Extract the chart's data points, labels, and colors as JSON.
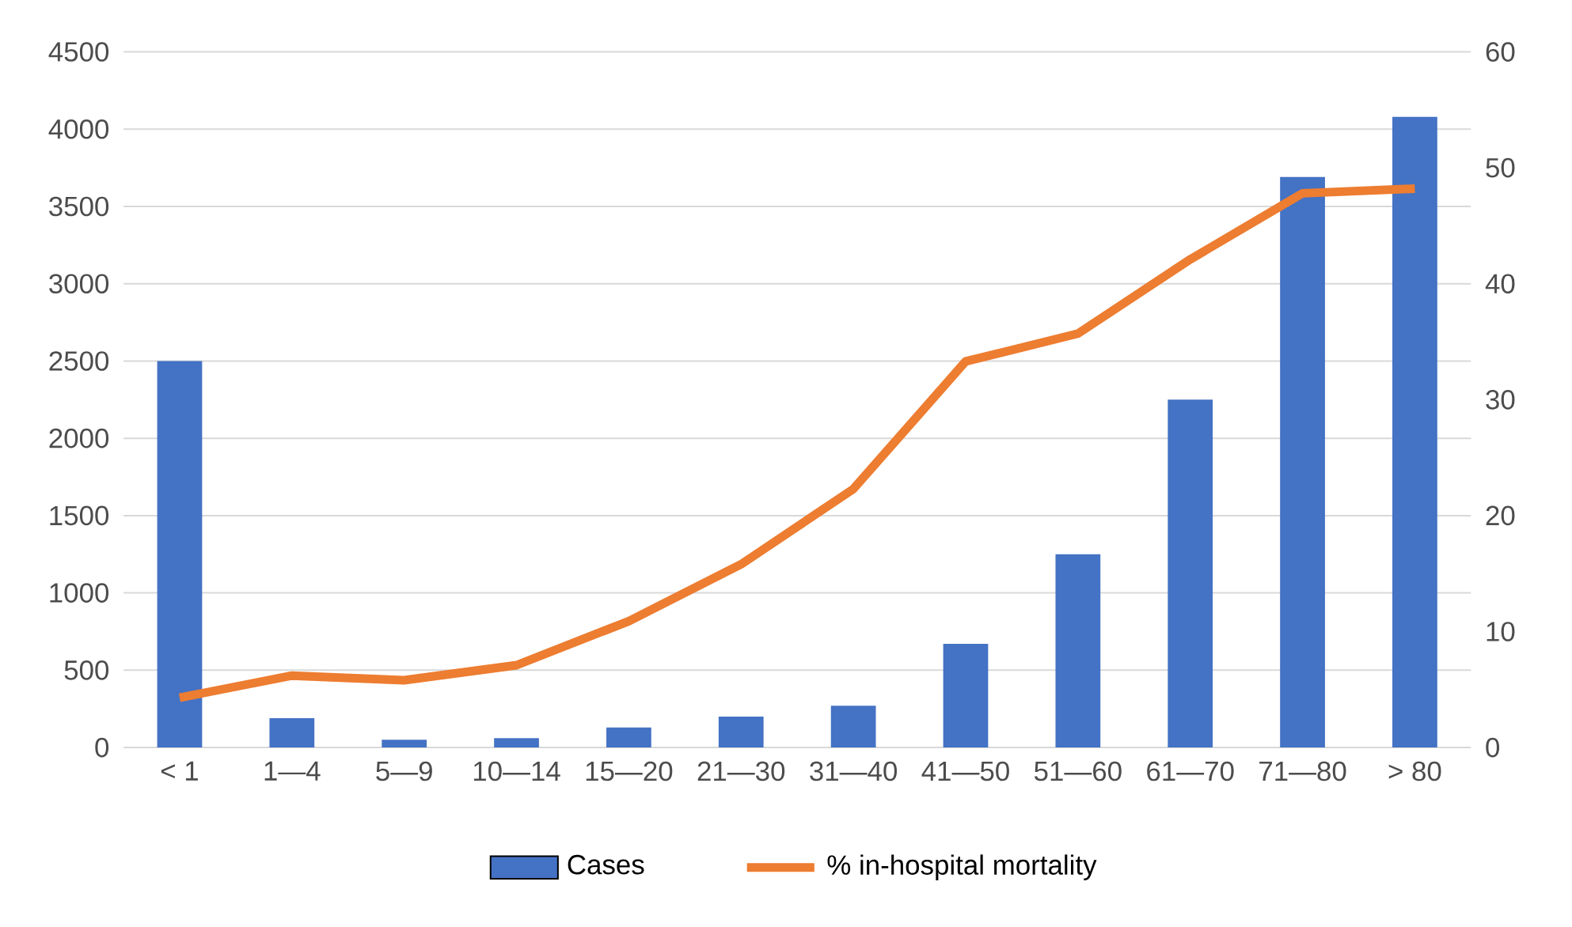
{
  "chart_data": {
    "type": "bar",
    "categories": [
      "< 1",
      "1—4",
      "5—9",
      "10—14",
      "15—20",
      "21—30",
      "31—40",
      "41—50",
      "51—60",
      "61—70",
      "71—80",
      "> 80"
    ],
    "series": [
      {
        "name": "Cases",
        "color": "#4472c4",
        "values": [
          2500,
          190,
          50,
          60,
          130,
          200,
          270,
          670,
          1250,
          2250,
          3690,
          4080
        ]
      },
      {
        "name": "% in-hospital mortality",
        "type": "line",
        "axis": "y2",
        "color": "#ed7d31",
        "values": [
          4.3,
          6.2,
          5.8,
          7.1,
          10.9,
          15.8,
          22.3,
          33.3,
          35.7,
          42.1,
          47.8,
          48.2
        ]
      }
    ],
    "ylim": [
      0,
      4500
    ],
    "yticks": [
      0,
      500,
      1000,
      1500,
      2000,
      2500,
      3000,
      3500,
      4000,
      4500
    ],
    "y2lim": [
      0,
      60
    ],
    "y2ticks": [
      0,
      10,
      20,
      30,
      40,
      50,
      60
    ],
    "grid": "y",
    "legend": "bottom",
    "marker": "none",
    "line_style": "solid"
  }
}
